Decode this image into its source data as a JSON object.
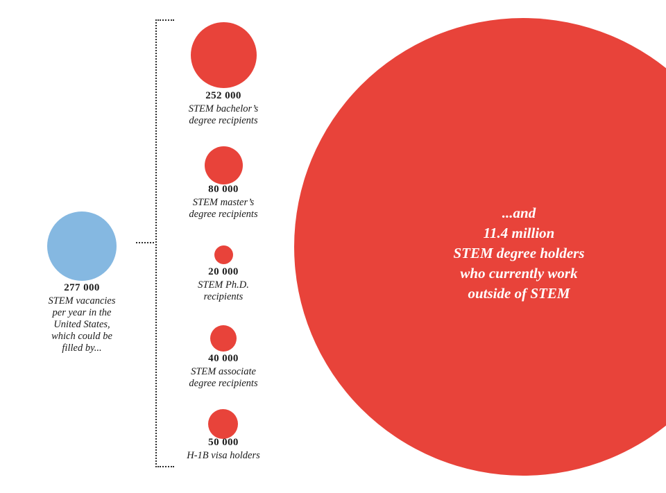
{
  "colors": {
    "blue": "#85b8e1",
    "red": "#e8433a",
    "text": "#1a1a1a",
    "bracket": "#2b2b2b",
    "big_circle_text": "#ffffff"
  },
  "chart_data": {
    "type": "bubble",
    "sizing": "area-proportional",
    "bubbles": [
      {
        "id": "vacancies",
        "value": 277000,
        "display_value": "277 000",
        "caption": "STEM vacancies per year in the United States, which could be filled by...",
        "color": "#85b8e1"
      },
      {
        "id": "bachelors",
        "value": 252000,
        "display_value": "252 000",
        "caption": "STEM bachelor’s degree recipients",
        "color": "#e8433a"
      },
      {
        "id": "masters",
        "value": 80000,
        "display_value": "80 000",
        "caption": "STEM master’s degree recipients",
        "color": "#e8433a"
      },
      {
        "id": "phd",
        "value": 20000,
        "display_value": "20 000",
        "caption": "STEM Ph.D. recipients",
        "color": "#e8433a"
      },
      {
        "id": "associate",
        "value": 40000,
        "display_value": "40 000",
        "caption": "STEM associate degree recipients",
        "color": "#e8433a"
      },
      {
        "id": "h1b",
        "value": 50000,
        "display_value": "50 000",
        "caption": "H-1B visa holders",
        "color": "#e8433a"
      },
      {
        "id": "outside",
        "value": 11400000,
        "display_value": "11.4 million",
        "caption": "...and 11.4 million STEM degree holders who currently work outside of STEM",
        "color": "#e8433a"
      }
    ]
  },
  "figure": {
    "vacancies": {
      "value": "277 000",
      "caption": "STEM vacancies\nper year in the\nUnited States,\nwhich could be\nfilled by..."
    },
    "bachelors": {
      "value": "252 000",
      "caption": "STEM bachelor’s\ndegree recipients"
    },
    "masters": {
      "value": "80 000",
      "caption": "STEM master’s\ndegree recipients"
    },
    "phd": {
      "value": "20 000",
      "caption": "STEM Ph.D.\nrecipients"
    },
    "associate": {
      "value": "40 000",
      "caption": "STEM associate\ndegree recipients"
    },
    "h1b": {
      "value": "50 000",
      "caption": "H-1B visa holders"
    },
    "outside": {
      "text": "...and\n11.4 million\nSTEM degree holders\nwho currently work\noutside of STEM"
    }
  }
}
